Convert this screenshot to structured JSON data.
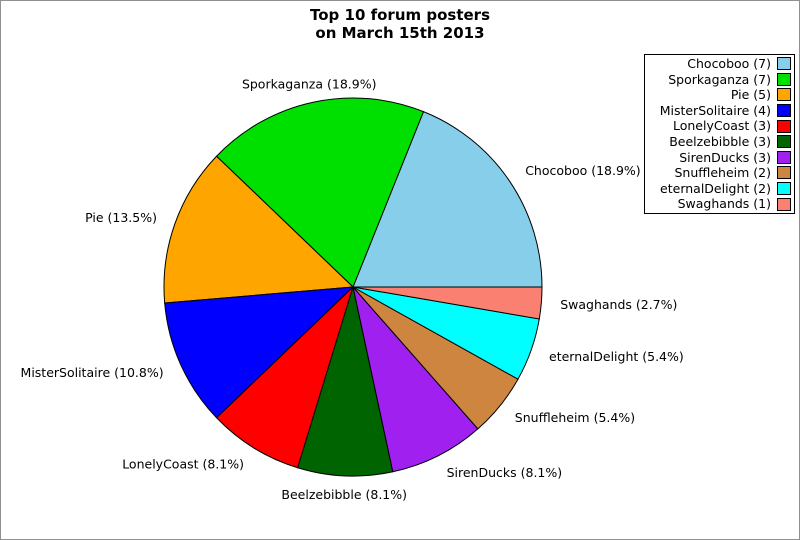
{
  "page": {
    "background": "#ffffff",
    "border_color": "#909090"
  },
  "title": {
    "line1": "Top 10 forum posters",
    "line2": "on March 15th 2013"
  },
  "chart_data": {
    "type": "pie",
    "title": "Top 10 forum posters on March 15th 2013",
    "unit": "posts",
    "total": 37,
    "start_angle_deg": 0,
    "direction": "counterclockwise",
    "legend_position": "upper-right",
    "slices": [
      {
        "name": "Chocoboo",
        "posts": 7,
        "percent": 18.9,
        "pie_label": "Chocoboo (18.9%)",
        "legend_label": "Chocoboo (7)",
        "color": "#87CEEB"
      },
      {
        "name": "Sporkaganza",
        "posts": 7,
        "percent": 18.9,
        "pie_label": "Sporkaganza (18.9%)",
        "legend_label": "Sporkaganza (7)",
        "color": "#00E000"
      },
      {
        "name": "Pie",
        "posts": 5,
        "percent": 13.5,
        "pie_label": "Pie (13.5%)",
        "legend_label": "Pie (5)",
        "color": "#FFA500"
      },
      {
        "name": "MisterSolitaire",
        "posts": 4,
        "percent": 10.8,
        "pie_label": "MisterSolitaire (10.8%)",
        "legend_label": "MisterSolitaire (4)",
        "color": "#0000FF"
      },
      {
        "name": "LonelyCoast",
        "posts": 3,
        "percent": 8.1,
        "pie_label": "LonelyCoast (8.1%)",
        "legend_label": "LonelyCoast (3)",
        "color": "#FF0000"
      },
      {
        "name": "Beelzebibble",
        "posts": 3,
        "percent": 8.1,
        "pie_label": "Beelzebibble (8.1%)",
        "legend_label": "Beelzebibble (3)",
        "color": "#006400"
      },
      {
        "name": "SirenDucks",
        "posts": 3,
        "percent": 8.1,
        "pie_label": "SirenDucks (8.1%)",
        "legend_label": "SirenDucks (3)",
        "color": "#A020F0"
      },
      {
        "name": "Snuffleheim",
        "posts": 2,
        "percent": 5.4,
        "pie_label": "Snuffleheim (5.4%)",
        "legend_label": "Snuffleheim (2)",
        "color": "#CD853F"
      },
      {
        "name": "eternalDelight",
        "posts": 2,
        "percent": 5.4,
        "pie_label": "eternalDelight (5.4%)",
        "legend_label": "eternalDelight (2)",
        "color": "#00FFFF"
      },
      {
        "name": "Swaghands",
        "posts": 1,
        "percent": 2.7,
        "pie_label": "Swaghands (2.7%)",
        "legend_label": "Swaghands (1)",
        "color": "#FA8072"
      }
    ]
  }
}
